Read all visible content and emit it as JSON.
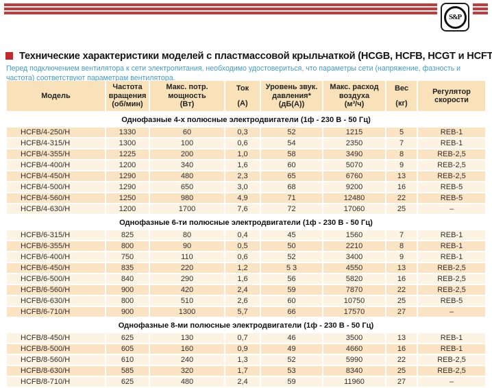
{
  "logo": {
    "text": "S&P"
  },
  "header": {
    "title": "Технические характеристики моделей с пластмассовой крыльчаткой (HCGB, HCFB, HCGT и HCFT)",
    "note": "Перед подключением вентилятора к сети электропитания, необходимо удостовериться, что параметры сети (напряжение, фазность и частота) соответствуют параметрам вентилятора."
  },
  "colors": {
    "accent_red": "#c5393b",
    "note_blue": "#3f9ccb",
    "table_header_bg": "#f9e2ba",
    "row_dark": "#fbe4c4",
    "row_light": "#fdf3e2"
  },
  "table": {
    "columns": [
      {
        "id": "model",
        "lines": [
          "Модель"
        ]
      },
      {
        "id": "rpm",
        "lines": [
          "Частота",
          "вращения",
          "(об/мин)"
        ]
      },
      {
        "id": "power",
        "lines": [
          "Макс. потр.",
          "мощность",
          "(Вт)"
        ]
      },
      {
        "id": "current",
        "lines": [
          "Ток",
          "",
          "(А)"
        ]
      },
      {
        "id": "noise",
        "lines": [
          "Уровень звук.",
          "давления*",
          "(дБ(А))"
        ]
      },
      {
        "id": "airflow",
        "lines": [
          "Макс. расход",
          "воздуха",
          "(м³/ч)"
        ]
      },
      {
        "id": "weight",
        "lines": [
          "Вес",
          "",
          "(кг)"
        ]
      },
      {
        "id": "regulator",
        "lines": [
          "Регулятор",
          "скорости"
        ]
      }
    ],
    "sections": [
      {
        "title": "Однофазные 4-х полюсные электродвигатели (1ф - 230 В - 50 Гц)",
        "first_shade": "dark",
        "rows": [
          [
            "HCFB/4-250/H",
            "1330",
            "60",
            "0,3",
            "52",
            "1215",
            "5",
            "REB-1"
          ],
          [
            "HCFB/4-315/H",
            "1300",
            "100",
            "0,6",
            "54",
            "2350",
            "7",
            "REB-1"
          ],
          [
            "HCFB/4-355/H",
            "1225",
            "200",
            "1,0",
            "58",
            "3490",
            "8",
            "REB-2,5"
          ],
          [
            "HCFB/4-400/H",
            "1200",
            "340",
            "1,6",
            "60",
            "5070",
            "9",
            "REB-2,5"
          ],
          [
            "HCFB/4-450/H",
            "1290",
            "480",
            "2,3",
            "65",
            "6760",
            "13",
            "REB-2,5"
          ],
          [
            "HCFB/4-500/H",
            "1290",
            "650",
            "3,0",
            "68",
            "9200",
            "16",
            "REB-5"
          ],
          [
            "HCFB/4-560/H",
            "1250",
            "980",
            "4,9",
            "71",
            "12480",
            "22",
            "REB-5"
          ],
          [
            "HCFB/4-630/H",
            "1200",
            "1700",
            "7,6",
            "72",
            "17060",
            "25",
            "–"
          ]
        ]
      },
      {
        "title": "Однофазные 6-ти полюсные электродвигатели (1ф - 230 В - 50 Гц)",
        "first_shade": "light",
        "rows": [
          [
            "HCFB/6-315/H",
            "825",
            "80",
            "0,4",
            "45",
            "1560",
            "7",
            "REB-1"
          ],
          [
            "HCFB/6-355/H",
            "800",
            "90",
            "0,5",
            "50",
            "2210",
            "8",
            "REB-1"
          ],
          [
            "HCFB/6-400/H",
            "750",
            "110",
            "0,6",
            "52",
            "3400",
            "9",
            "REB-1"
          ],
          [
            "HCFB/6-450/H",
            "835",
            "220",
            "1,2",
            "5 3",
            "4550",
            "13",
            "REB-2,5"
          ],
          [
            "HCFB/6-500/H",
            "840",
            "290",
            "1,6",
            "56",
            "5820",
            "16",
            "REB-2,5"
          ],
          [
            "HCFB/6-560/H",
            "900",
            "420",
            "2,4",
            "59",
            "7870",
            "22",
            "REB-2,5"
          ],
          [
            "HCFB/6-630/H",
            "800",
            "510",
            "2,6",
            "60",
            "10750",
            "25",
            "REB-5"
          ],
          [
            "HCFB/6-710/H",
            "900",
            "1300",
            "5,7",
            "66",
            "17570",
            "27",
            "–"
          ]
        ]
      },
      {
        "title": "Однофазные 8-ми полюсные электродвигатели (1ф - 230 В - 50 Гц)",
        "first_shade": "light",
        "rows": [
          [
            "HCFB/8-450/H",
            "625",
            "130",
            "0,7",
            "46",
            "3500",
            "13",
            "REB-1"
          ],
          [
            "HCFB/8-500/H",
            "605",
            "160",
            "0,9",
            "49",
            "4660",
            "16",
            "REB-1"
          ],
          [
            "HCFB/8-560/H",
            "610",
            "240",
            "1,3",
            "52",
            "5990",
            "22",
            "REB-2,5"
          ],
          [
            "HCFB/8-630/H",
            "585",
            "320",
            "1,7",
            "53",
            "8340",
            "25",
            "REB-2,5"
          ],
          [
            "HCFB/8-710/H",
            "625",
            "480",
            "2,4",
            "59",
            "11960",
            "27",
            "–"
          ]
        ]
      }
    ]
  }
}
